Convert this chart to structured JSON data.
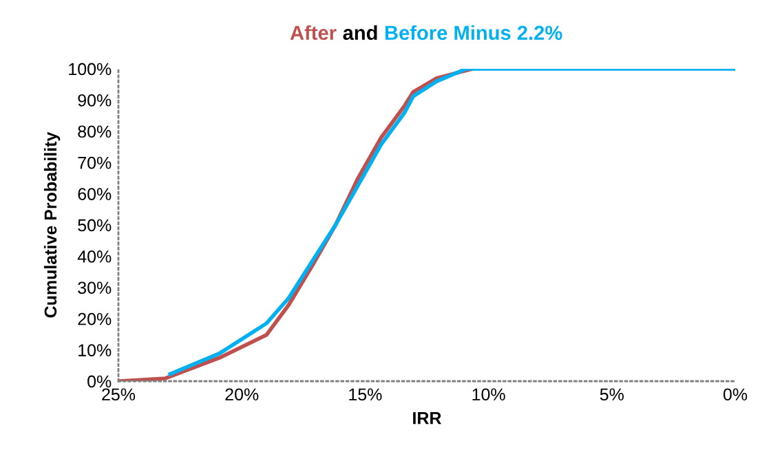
{
  "chart_data": {
    "type": "line",
    "title": "and",
    "xlabel": "IRR",
    "ylabel": "Cumulative Probability",
    "xlim": [
      25,
      0
    ],
    "xticks": [
      {
        "value": 25,
        "label": "25%"
      },
      {
        "value": 20,
        "label": "20%"
      },
      {
        "value": 15,
        "label": "15%"
      },
      {
        "value": 10,
        "label": "10%"
      },
      {
        "value": 5,
        "label": "5%"
      },
      {
        "value": 0,
        "label": "0%"
      }
    ],
    "ylim": [
      0,
      100
    ],
    "yticks": [
      {
        "value": 0,
        "label": "0%"
      },
      {
        "value": 10,
        "label": "10%"
      },
      {
        "value": 20,
        "label": "20%"
      },
      {
        "value": 30,
        "label": "30%"
      },
      {
        "value": 40,
        "label": "40%"
      },
      {
        "value": 50,
        "label": "50%"
      },
      {
        "value": 60,
        "label": "60%"
      },
      {
        "value": 70,
        "label": "70%"
      },
      {
        "value": 80,
        "label": "80%"
      },
      {
        "value": 90,
        "label": "90%"
      },
      {
        "value": 100,
        "label": "100%"
      }
    ],
    "grid": false,
    "legend": false,
    "marker": "none",
    "line_style": "solid",
    "series": [
      {
        "name": "After",
        "color": "#c0504d",
        "x": [
          25,
          23.1,
          20.9,
          19.0,
          18.1,
          17.15,
          16.2,
          15.3,
          14.35,
          13.4,
          13.05,
          12.1,
          10.65
        ],
        "values": [
          0,
          0.9,
          7.5,
          14.8,
          24.4,
          36.9,
          50,
          64.8,
          78,
          88.2,
          92.6,
          97,
          100
        ]
      },
      {
        "name": "Before Minus 2.2%",
        "color": "#00b0f0",
        "x": [
          22.9,
          20.9,
          19.0,
          18.1,
          17.15,
          16.2,
          15.3,
          14.35,
          13.4,
          13.05,
          12.1,
          10.9,
          0
        ],
        "values": [
          2.3,
          8.9,
          18.5,
          26.6,
          38.3,
          50,
          62.5,
          75.8,
          86,
          91.2,
          96,
          100,
          100
        ]
      }
    ]
  }
}
